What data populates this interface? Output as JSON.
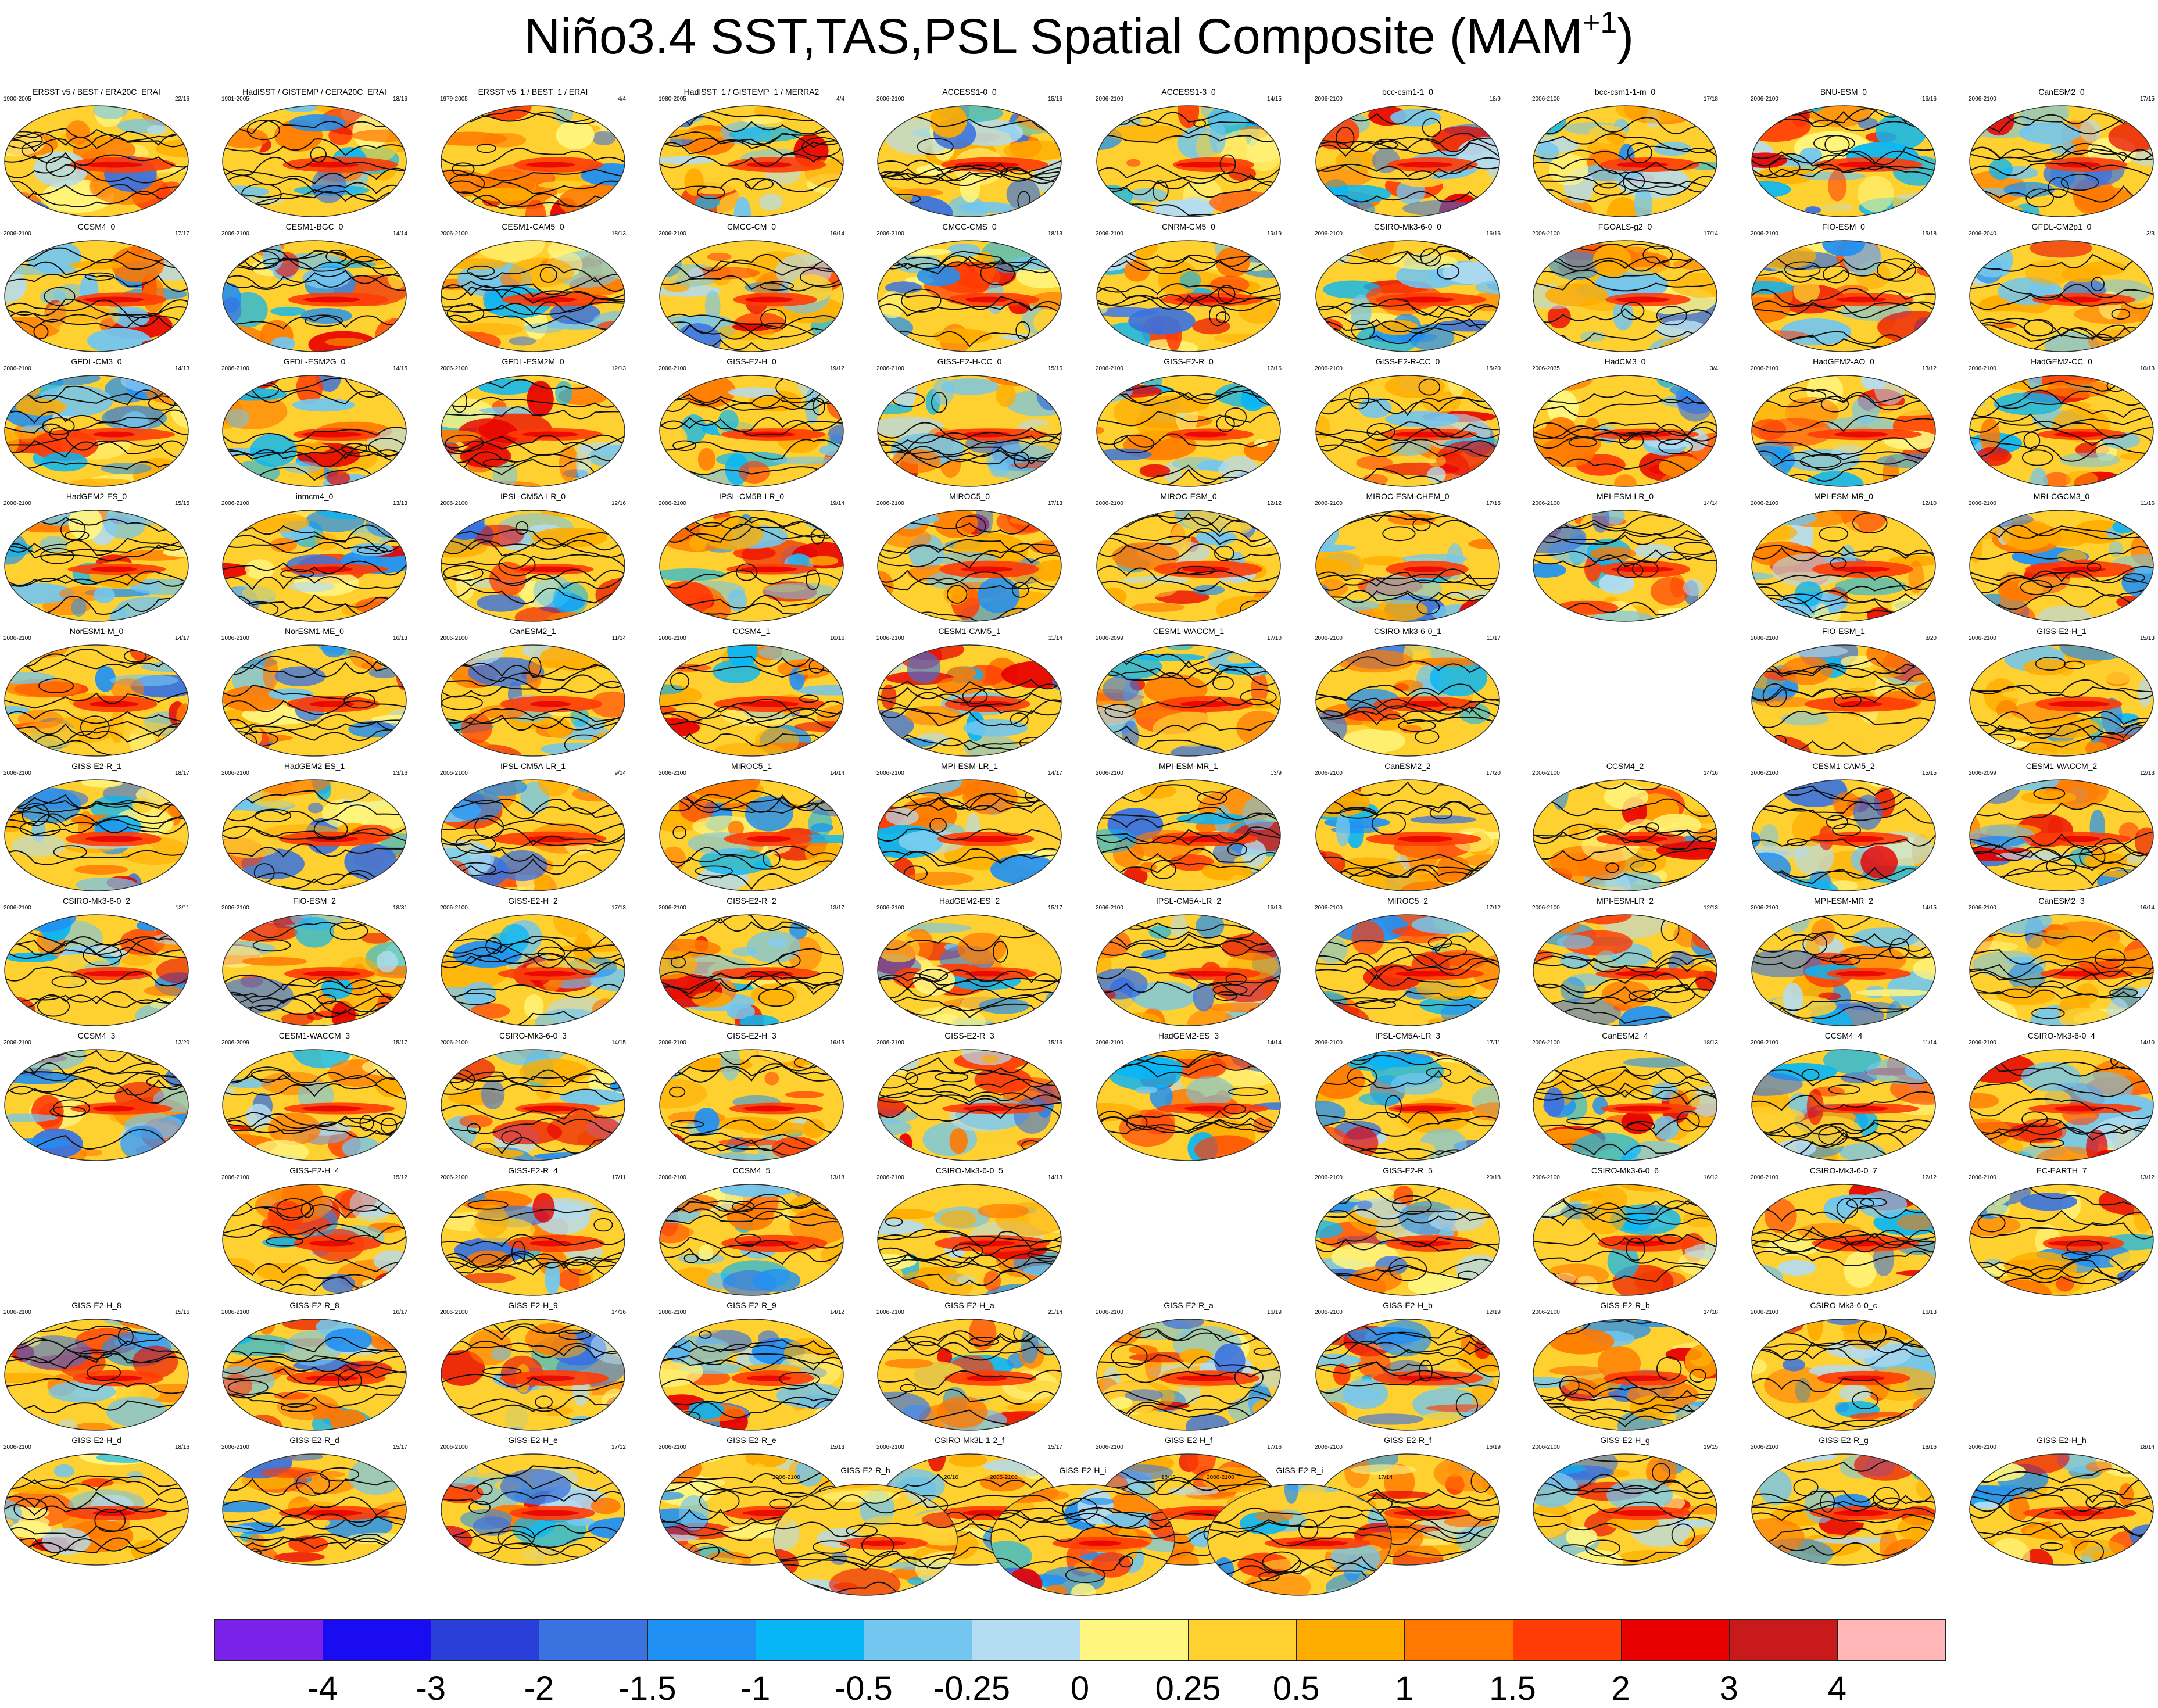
{
  "title": {
    "main": "Niño3.4 SST,TAS,PSL Spatial Composite (MAM",
    "sup": "+1",
    "close": ")"
  },
  "rows": [
    [
      {
        "name": "ERSST v5 / BEST / ERA20C_ERAI",
        "period": "1900-2005",
        "count": "22/16"
      },
      {
        "name": "HadISST / GISTEMP / CERA20C_ERAI",
        "period": "1901-2005",
        "count": "18/16"
      },
      {
        "name": "ERSST v5_1 / BEST_1 / ERAI",
        "period": "1979-2005",
        "count": "4/4"
      },
      {
        "name": "HadISST_1 / GISTEMP_1 / MERRA2",
        "period": "1980-2005",
        "count": "4/4"
      },
      {
        "name": "ACCESS1-0_0",
        "period": "2006-2100",
        "count": "15/16"
      },
      {
        "name": "ACCESS1-3_0",
        "period": "2006-2100",
        "count": "14/15"
      },
      {
        "name": "bcc-csm1-1_0",
        "period": "2006-2100",
        "count": "18/9"
      },
      {
        "name": "bcc-csm1-1-m_0",
        "period": "2006-2100",
        "count": "17/18"
      },
      {
        "name": "BNU-ESM_0",
        "period": "2006-2100",
        "count": "16/16"
      },
      {
        "name": "CanESM2_0",
        "period": "2006-2100",
        "count": "17/15"
      }
    ],
    [
      {
        "name": "CCSM4_0",
        "period": "2006-2100",
        "count": "17/17"
      },
      {
        "name": "CESM1-BGC_0",
        "period": "2006-2100",
        "count": "14/14"
      },
      {
        "name": "CESM1-CAM5_0",
        "period": "2006-2100",
        "count": "18/13"
      },
      {
        "name": "CMCC-CM_0",
        "period": "2006-2100",
        "count": "16/14"
      },
      {
        "name": "CMCC-CMS_0",
        "period": "2006-2100",
        "count": "18/13"
      },
      {
        "name": "CNRM-CM5_0",
        "period": "2006-2100",
        "count": "19/19"
      },
      {
        "name": "CSIRO-Mk3-6-0_0",
        "period": "2006-2100",
        "count": "16/16"
      },
      {
        "name": "FGOALS-g2_0",
        "period": "2006-2100",
        "count": "17/14"
      },
      {
        "name": "FIO-ESM_0",
        "period": "2006-2100",
        "count": "15/18"
      },
      {
        "name": "GFDL-CM2p1_0",
        "period": "2006-2040",
        "count": "3/3"
      }
    ],
    [
      {
        "name": "GFDL-CM3_0",
        "period": "2006-2100",
        "count": "14/13"
      },
      {
        "name": "GFDL-ESM2G_0",
        "period": "2006-2100",
        "count": "14/15"
      },
      {
        "name": "GFDL-ESM2M_0",
        "period": "2006-2100",
        "count": "12/13"
      },
      {
        "name": "GISS-E2-H_0",
        "period": "2006-2100",
        "count": "19/12"
      },
      {
        "name": "GISS-E2-H-CC_0",
        "period": "2006-2100",
        "count": "15/16"
      },
      {
        "name": "GISS-E2-R_0",
        "period": "2006-2100",
        "count": "17/16"
      },
      {
        "name": "GISS-E2-R-CC_0",
        "period": "2006-2100",
        "count": "15/20"
      },
      {
        "name": "HadCM3_0",
        "period": "2006-2035",
        "count": "3/4"
      },
      {
        "name": "HadGEM2-AO_0",
        "period": "2006-2100",
        "count": "13/12"
      },
      {
        "name": "HadGEM2-CC_0",
        "period": "2006-2100",
        "count": "16/13"
      }
    ],
    [
      {
        "name": "HadGEM2-ES_0",
        "period": "2006-2100",
        "count": "15/15"
      },
      {
        "name": "inmcm4_0",
        "period": "2006-2100",
        "count": "13/13"
      },
      {
        "name": "IPSL-CM5A-LR_0",
        "period": "2006-2100",
        "count": "12/16"
      },
      {
        "name": "IPSL-CM5B-LR_0",
        "period": "2006-2100",
        "count": "19/14"
      },
      {
        "name": "MIROC5_0",
        "period": "2006-2100",
        "count": "17/13"
      },
      {
        "name": "MIROC-ESM_0",
        "period": "2006-2100",
        "count": "12/12"
      },
      {
        "name": "MIROC-ESM-CHEM_0",
        "period": "2006-2100",
        "count": "17/15"
      },
      {
        "name": "MPI-ESM-LR_0",
        "period": "2006-2100",
        "count": "14/14"
      },
      {
        "name": "MPI-ESM-MR_0",
        "period": "2006-2100",
        "count": "12/10"
      },
      {
        "name": "MRI-CGCM3_0",
        "period": "2006-2100",
        "count": "11/16"
      }
    ],
    [
      {
        "name": "NorESM1-M_0",
        "period": "2006-2100",
        "count": "14/17"
      },
      {
        "name": "NorESM1-ME_0",
        "period": "2006-2100",
        "count": "16/13"
      },
      {
        "name": "CanESM2_1",
        "period": "2006-2100",
        "count": "11/14"
      },
      {
        "name": "CCSM4_1",
        "period": "2006-2100",
        "count": "16/16"
      },
      {
        "name": "CESM1-CAM5_1",
        "period": "2006-2100",
        "count": "11/14"
      },
      {
        "name": "CESM1-WACCM_1",
        "period": "2006-2099",
        "count": "17/10"
      },
      {
        "name": "CSIRO-Mk3-6-0_1",
        "period": "2006-2100",
        "count": "11/17"
      },
      null,
      {
        "name": "FIO-ESM_1",
        "period": "2006-2100",
        "count": "8/20"
      },
      {
        "name": "GISS-E2-H_1",
        "period": "2006-2100",
        "count": "15/13"
      }
    ],
    [
      {
        "name": "GISS-E2-R_1",
        "period": "2006-2100",
        "count": "18/17"
      },
      {
        "name": "HadGEM2-ES_1",
        "period": "2006-2100",
        "count": "13/16"
      },
      {
        "name": "IPSL-CM5A-LR_1",
        "period": "2006-2100",
        "count": "9/14"
      },
      {
        "name": "MIROC5_1",
        "period": "2006-2100",
        "count": "14/14"
      },
      {
        "name": "MPI-ESM-LR_1",
        "period": "2006-2100",
        "count": "14/17"
      },
      {
        "name": "MPI-ESM-MR_1",
        "period": "2006-2100",
        "count": "13/9"
      },
      {
        "name": "CanESM2_2",
        "period": "2006-2100",
        "count": "17/20"
      },
      {
        "name": "CCSM4_2",
        "period": "2006-2100",
        "count": "14/16"
      },
      {
        "name": "CESM1-CAM5_2",
        "period": "2006-2100",
        "count": "15/15"
      },
      {
        "name": "CESM1-WACCM_2",
        "period": "2006-2099",
        "count": "12/13"
      }
    ],
    [
      {
        "name": "CSIRO-Mk3-6-0_2",
        "period": "2006-2100",
        "count": "13/11"
      },
      {
        "name": "FIO-ESM_2",
        "period": "2006-2100",
        "count": "18/31"
      },
      {
        "name": "GISS-E2-H_2",
        "period": "2006-2100",
        "count": "17/13"
      },
      {
        "name": "GISS-E2-R_2",
        "period": "2006-2100",
        "count": "13/17"
      },
      {
        "name": "HadGEM2-ES_2",
        "period": "2006-2100",
        "count": "15/17"
      },
      {
        "name": "IPSL-CM5A-LR_2",
        "period": "2006-2100",
        "count": "16/13"
      },
      {
        "name": "MIROC5_2",
        "period": "2006-2100",
        "count": "17/12"
      },
      {
        "name": "MPI-ESM-LR_2",
        "period": "2006-2100",
        "count": "12/13"
      },
      {
        "name": "MPI-ESM-MR_2",
        "period": "2006-2100",
        "count": "14/15"
      },
      {
        "name": "CanESM2_3",
        "period": "2006-2100",
        "count": "16/14"
      }
    ],
    [
      {
        "name": "CCSM4_3",
        "period": "2006-2100",
        "count": "12/20"
      },
      {
        "name": "CESM1-WACCM_3",
        "period": "2006-2099",
        "count": "15/17"
      },
      {
        "name": "CSIRO-Mk3-6-0_3",
        "period": "2006-2100",
        "count": "14/15"
      },
      {
        "name": "GISS-E2-H_3",
        "period": "2006-2100",
        "count": "16/15"
      },
      {
        "name": "GISS-E2-R_3",
        "period": "2006-2100",
        "count": "15/16"
      },
      {
        "name": "HadGEM2-ES_3",
        "period": "2006-2100",
        "count": "14/14"
      },
      {
        "name": "IPSL-CM5A-LR_3",
        "period": "2006-2100",
        "count": "17/11"
      },
      {
        "name": "CanESM2_4",
        "period": "2006-2100",
        "count": "18/13"
      },
      {
        "name": "CCSM4_4",
        "period": "2006-2100",
        "count": "11/14"
      },
      {
        "name": "CSIRO-Mk3-6-0_4",
        "period": "2006-2100",
        "count": "14/10"
      }
    ],
    [
      null,
      {
        "name": "GISS-E2-H_4",
        "period": "2006-2100",
        "count": "15/12"
      },
      {
        "name": "GISS-E2-R_4",
        "period": "2006-2100",
        "count": "17/11"
      },
      {
        "name": "CCSM4_5",
        "period": "2006-2100",
        "count": "13/18"
      },
      {
        "name": "CSIRO-Mk3-6-0_5",
        "period": "2006-2100",
        "count": "14/13"
      },
      null,
      {
        "name": "GISS-E2-R_5",
        "period": "2006-2100",
        "count": "20/18"
      },
      {
        "name": "CSIRO-Mk3-6-0_6",
        "period": "2006-2100",
        "count": "16/12"
      },
      {
        "name": "CSIRO-Mk3-6-0_7",
        "period": "2006-2100",
        "count": "12/12"
      },
      {
        "name": "EC-EARTH_7",
        "period": "2006-2100",
        "count": "13/12"
      }
    ],
    [
      {
        "name": "GISS-E2-H_8",
        "period": "2006-2100",
        "count": "15/16"
      },
      {
        "name": "GISS-E2-R_8",
        "period": "2006-2100",
        "count": "16/17"
      },
      {
        "name": "GISS-E2-H_9",
        "period": "2006-2100",
        "count": "14/16"
      },
      {
        "name": "GISS-E2-R_9",
        "period": "2006-2100",
        "count": "14/12"
      },
      {
        "name": "GISS-E2-H_a",
        "period": "2006-2100",
        "count": "21/14"
      },
      {
        "name": "GISS-E2-R_a",
        "period": "2006-2100",
        "count": "16/19"
      },
      {
        "name": "GISS-E2-H_b",
        "period": "2006-2100",
        "count": "12/19"
      },
      {
        "name": "GISS-E2-R_b",
        "period": "2006-2100",
        "count": "14/18"
      },
      {
        "name": "CSIRO-Mk3-6-0_c",
        "period": "2006-2100",
        "count": "16/13"
      },
      null
    ],
    [
      {
        "name": "GISS-E2-H_d",
        "period": "2006-2100",
        "count": "18/16"
      },
      {
        "name": "GISS-E2-R_d",
        "period": "2006-2100",
        "count": "15/17"
      },
      {
        "name": "GISS-E2-H_e",
        "period": "2006-2100",
        "count": "17/12"
      },
      {
        "name": "GISS-E2-R_e",
        "period": "2006-2100",
        "count": "15/13"
      },
      {
        "name": "CSIRO-Mk3L-1-2_f",
        "period": "2006-2100",
        "count": "15/17"
      },
      {
        "name": "GISS-E2-H_f",
        "period": "2006-2100",
        "count": "17/16"
      },
      {
        "name": "GISS-E2-R_f",
        "period": "2006-2100",
        "count": "16/19"
      },
      {
        "name": "GISS-E2-H_g",
        "period": "2006-2100",
        "count": "19/15"
      },
      {
        "name": "GISS-E2-R_g",
        "period": "2006-2100",
        "count": "18/16"
      },
      {
        "name": "GISS-E2-H_h",
        "period": "2006-2100",
        "count": "18/14"
      }
    ],
    [
      {
        "name": "GISS-E2-R_h",
        "period": "2006-2100",
        "count": "20/16"
      },
      {
        "name": "GISS-E2-H_i",
        "period": "2006-2100",
        "count": "18/18"
      },
      {
        "name": "GISS-E2-R_i",
        "period": "2006-2100",
        "count": "17/14"
      }
    ]
  ],
  "chart_data": {
    "type": "heatmap",
    "title": "Niño3.4 SST,TAS,PSL Spatial Composite (MAM+1)",
    "colorbar": {
      "levels": [
        "-4",
        "-3",
        "-2",
        "-1.5",
        "-1",
        "-0.5",
        "-0.25",
        "0",
        "0.25",
        "0.5",
        "1",
        "1.5",
        "2",
        "3",
        "4"
      ],
      "colors": [
        "#7a22e8",
        "#1a0cf0",
        "#2a3ed8",
        "#3a72e0",
        "#2090f4",
        "#08b6f6",
        "#72c6f0",
        "#b4dcf2",
        "#fff680",
        "#fed030",
        "#ffac00",
        "#ff7800",
        "#ff3c06",
        "#e80000",
        "#c81a1a",
        "#ffb6b6"
      ]
    }
  }
}
